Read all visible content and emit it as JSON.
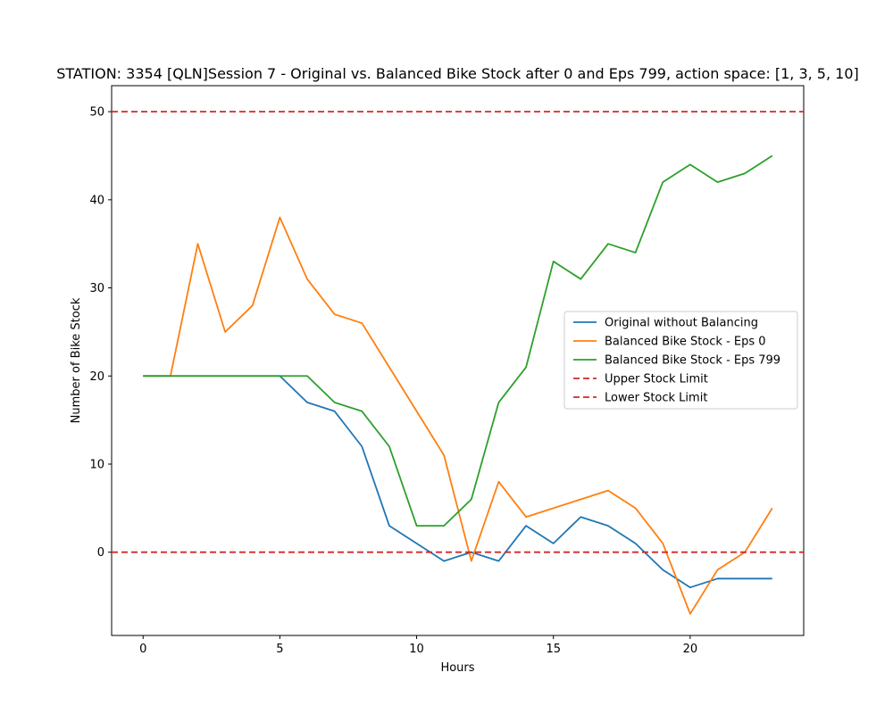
{
  "chart_data": {
    "type": "line",
    "title": "STATION: 3354 [QLN]Session 7 - Original vs. Balanced Bike Stock after 0 and Eps 799, action space: [1, 3, 5, 10]",
    "xlabel": "Hours",
    "ylabel": "Number of Bike Stock",
    "xlim": [
      -1.15,
      24.15
    ],
    "ylim": [
      -9.45,
      52.95
    ],
    "xticks": [
      0,
      5,
      10,
      15,
      20
    ],
    "yticks": [
      0,
      10,
      20,
      30,
      40,
      50
    ],
    "legend_position": "center-right",
    "grid": false,
    "x": [
      0,
      1,
      2,
      3,
      4,
      5,
      6,
      7,
      8,
      9,
      10,
      11,
      12,
      13,
      14,
      15,
      16,
      17,
      18,
      19,
      20,
      21,
      22,
      23
    ],
    "series": [
      {
        "name": "Original without Balancing",
        "color": "#1f77b4",
        "values": [
          20,
          20,
          20,
          20,
          20,
          20,
          17,
          16,
          12,
          3,
          1,
          -1,
          0,
          -1,
          3,
          1,
          4,
          3,
          1,
          -2,
          -4,
          -3,
          -3,
          -3
        ]
      },
      {
        "name": "Balanced Bike Stock - Eps 0",
        "color": "#ff7f0e",
        "values": [
          20,
          20,
          35,
          25,
          28,
          38,
          31,
          27,
          26,
          21,
          16,
          11,
          -1,
          8,
          4,
          5,
          6,
          7,
          5,
          1,
          -7,
          -2,
          0,
          5
        ]
      },
      {
        "name": "Balanced Bike Stock - Eps 799",
        "color": "#2ca02c",
        "values": [
          20,
          20,
          20,
          20,
          20,
          20,
          20,
          17,
          16,
          12,
          3,
          3,
          6,
          17,
          21,
          33,
          31,
          35,
          34,
          42,
          44,
          42,
          43,
          45
        ]
      }
    ],
    "reference_lines": [
      {
        "name": "Upper Stock Limit",
        "y": 50,
        "color": "#d62728",
        "style": "dashed"
      },
      {
        "name": "Lower Stock Limit",
        "y": 0,
        "color": "#d62728",
        "style": "dashed"
      }
    ]
  }
}
